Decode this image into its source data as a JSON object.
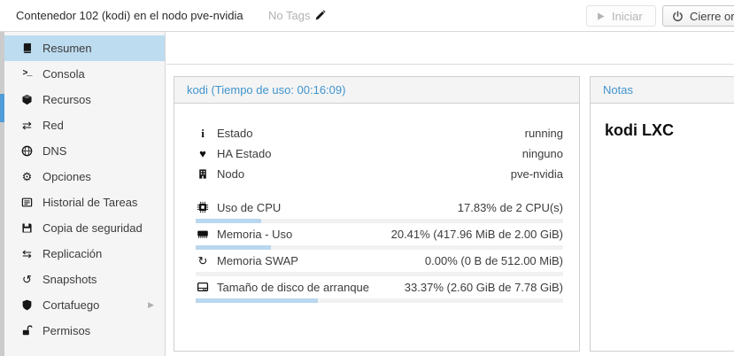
{
  "toolbar": {
    "title": "Contenedor 102 (kodi) en el nodo pve-nvidia",
    "tags_label": "No Tags",
    "start_label": "Iniciar",
    "shutdown_label": "Cierre ordena"
  },
  "icons": {
    "terminal": ">_",
    "network": "⇄",
    "gear": "⚙",
    "replication": "⇆",
    "snapshots": "↺",
    "swap": "↻",
    "info": "i",
    "heartbeat": "♥",
    "chevron_right": "▶"
  },
  "sidebar": {
    "items": [
      {
        "label": "Resumen",
        "selected": true
      },
      {
        "label": "Consola"
      },
      {
        "label": "Recursos"
      },
      {
        "label": "Red"
      },
      {
        "label": "DNS"
      },
      {
        "label": "Opciones"
      },
      {
        "label": "Historial de Tareas"
      },
      {
        "label": "Copia de seguridad"
      },
      {
        "label": "Replicación"
      },
      {
        "label": "Snapshots"
      },
      {
        "label": "Cortafuego",
        "has_submenu": true
      },
      {
        "label": "Permisos"
      }
    ]
  },
  "status_panel": {
    "title": "kodi (Tiempo de uso: 00:16:09)",
    "rows": [
      {
        "label": "Estado",
        "value": "running"
      },
      {
        "label": "HA Estado",
        "value": "ninguno"
      },
      {
        "label": "Nodo",
        "value": "pve-nvidia"
      }
    ],
    "meters": [
      {
        "label": "Uso de CPU",
        "value": "17.83% de 2 CPU(s)",
        "percent": 17.83
      },
      {
        "label": "Memoria - Uso",
        "value": "20.41% (417.96 MiB de 2.00 GiB)",
        "percent": 20.41
      },
      {
        "label": "Memoria SWAP",
        "value": "0.00% (0 B de 512.00 MiB)",
        "percent": 0
      },
      {
        "label": "Tamaño de disco de arranque",
        "value": "33.37% (2.60 GiB de 7.78 GiB)",
        "percent": 33.37
      }
    ]
  },
  "notes_panel": {
    "title": "Notas",
    "content": "kodi LXC"
  },
  "colors": {
    "accent_blue": "#4094ce",
    "selection_blue": "#bddcf0",
    "progress_fill": "#b9d7ef",
    "scroll_thumb": "#4f9cd8",
    "panel_border": "#cfcfcf",
    "header_bg": "#f4f4f4"
  }
}
